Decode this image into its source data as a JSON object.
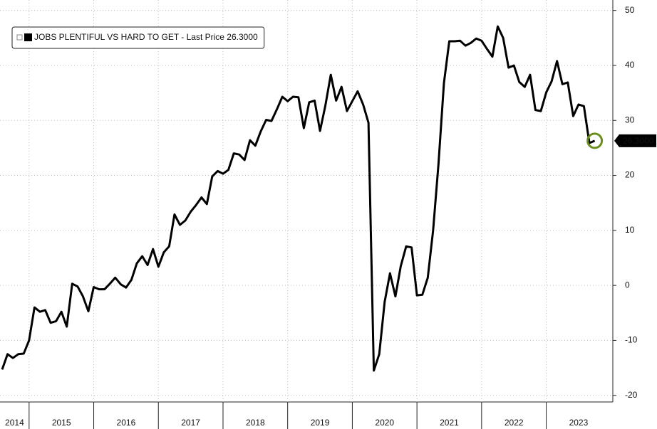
{
  "chart_data": {
    "type": "line",
    "series": [
      {
        "name": "JOBS PLENTIFUL VS HARD TO GET - Last Price 26.3000",
        "color": "#000000",
        "values": [
          -15.3,
          -12.5,
          -13.2,
          -12.5,
          -12.4,
          -10,
          -4,
          -4.8,
          -4.5,
          -6.8,
          -6.5,
          -4.8,
          -7.5,
          0.3,
          -0.2,
          -2,
          -4.7,
          -0.3,
          -0.7,
          -0.7,
          0.3,
          1.4,
          0.2,
          -0.4,
          1,
          4,
          5.3,
          3.7,
          6.6,
          3.4,
          6,
          7.1,
          12.9,
          11,
          11.8,
          13.4,
          14.6,
          16,
          14.8,
          19.8,
          20.8,
          20.3,
          21,
          24,
          23.8,
          22.8,
          26.4,
          25.4,
          28,
          30.1,
          29.9,
          32,
          34.3,
          33.5,
          34.3,
          34.2,
          28.6,
          33.3,
          33.6,
          28.1,
          32.7,
          38.3,
          33.6,
          36.1,
          31.7,
          33.5,
          35.3,
          32.9,
          29.6,
          -15.5,
          -12.5,
          -3,
          2.2,
          -2,
          3.5,
          7.1,
          6.9,
          -1.8,
          -1.7,
          1.4,
          10,
          22,
          36.8,
          44.4,
          44.4,
          44.5,
          43.6,
          44.1,
          44.9,
          44.5,
          43,
          41.6,
          47.1,
          45,
          39.6,
          40,
          37,
          36.1,
          38.3,
          31.9,
          31.7,
          35.1,
          37.1,
          40.8,
          36.6,
          36.9,
          30.8,
          32.9,
          32.6,
          25.9,
          26.3
        ]
      }
    ],
    "x": [
      2014.583,
      2014.667,
      2014.75,
      2014.833,
      2014.917,
      2015,
      2015.083,
      2015.167,
      2015.25,
      2015.333,
      2015.417,
      2015.5,
      2015.583,
      2015.667,
      2015.75,
      2015.833,
      2015.917,
      2016,
      2016.083,
      2016.167,
      2016.25,
      2016.333,
      2016.417,
      2016.5,
      2016.583,
      2016.667,
      2016.75,
      2016.833,
      2016.917,
      2017,
      2017.083,
      2017.167,
      2017.25,
      2017.333,
      2017.417,
      2017.5,
      2017.583,
      2017.667,
      2017.75,
      2017.833,
      2017.917,
      2018,
      2018.083,
      2018.167,
      2018.25,
      2018.333,
      2018.417,
      2018.5,
      2018.583,
      2018.667,
      2018.75,
      2018.833,
      2018.917,
      2019,
      2019.083,
      2019.167,
      2019.25,
      2019.333,
      2019.417,
      2019.5,
      2019.583,
      2019.667,
      2019.75,
      2019.833,
      2019.917,
      2020,
      2020.083,
      2020.167,
      2020.25,
      2020.333,
      2020.417,
      2020.5,
      2020.583,
      2020.667,
      2020.75,
      2020.833,
      2020.917,
      2021,
      2021.083,
      2021.167,
      2021.25,
      2021.333,
      2021.417,
      2021.5,
      2021.583,
      2021.667,
      2021.75,
      2021.833,
      2021.917,
      2022,
      2022.083,
      2022.167,
      2022.25,
      2022.333,
      2022.417,
      2022.5,
      2022.583,
      2022.667,
      2022.75,
      2022.833,
      2022.917,
      2023,
      2023.083,
      2023.167,
      2023.25,
      2023.333,
      2023.417,
      2023.5,
      2023.583,
      2023.667,
      2023.75
    ],
    "xlim": [
      2014.55,
      2024.03
    ],
    "xticks": [
      {
        "value": 2014,
        "label": "2014"
      },
      {
        "value": 2015,
        "label": "2015"
      },
      {
        "value": 2016,
        "label": "2016"
      },
      {
        "value": 2017,
        "label": "2017"
      },
      {
        "value": 2018,
        "label": "2018"
      },
      {
        "value": 2019,
        "label": "2019"
      },
      {
        "value": 2020,
        "label": "2020"
      },
      {
        "value": 2021,
        "label": "2021"
      },
      {
        "value": 2022,
        "label": "2022"
      },
      {
        "value": 2023,
        "label": "2023"
      }
    ],
    "ylim": [
      -21.2,
      51.9
    ],
    "yticks": [
      50,
      40,
      30,
      20,
      10,
      0,
      -10,
      -20
    ],
    "grid": true,
    "legend": "top-left",
    "last_price_label": "26.3000"
  }
}
